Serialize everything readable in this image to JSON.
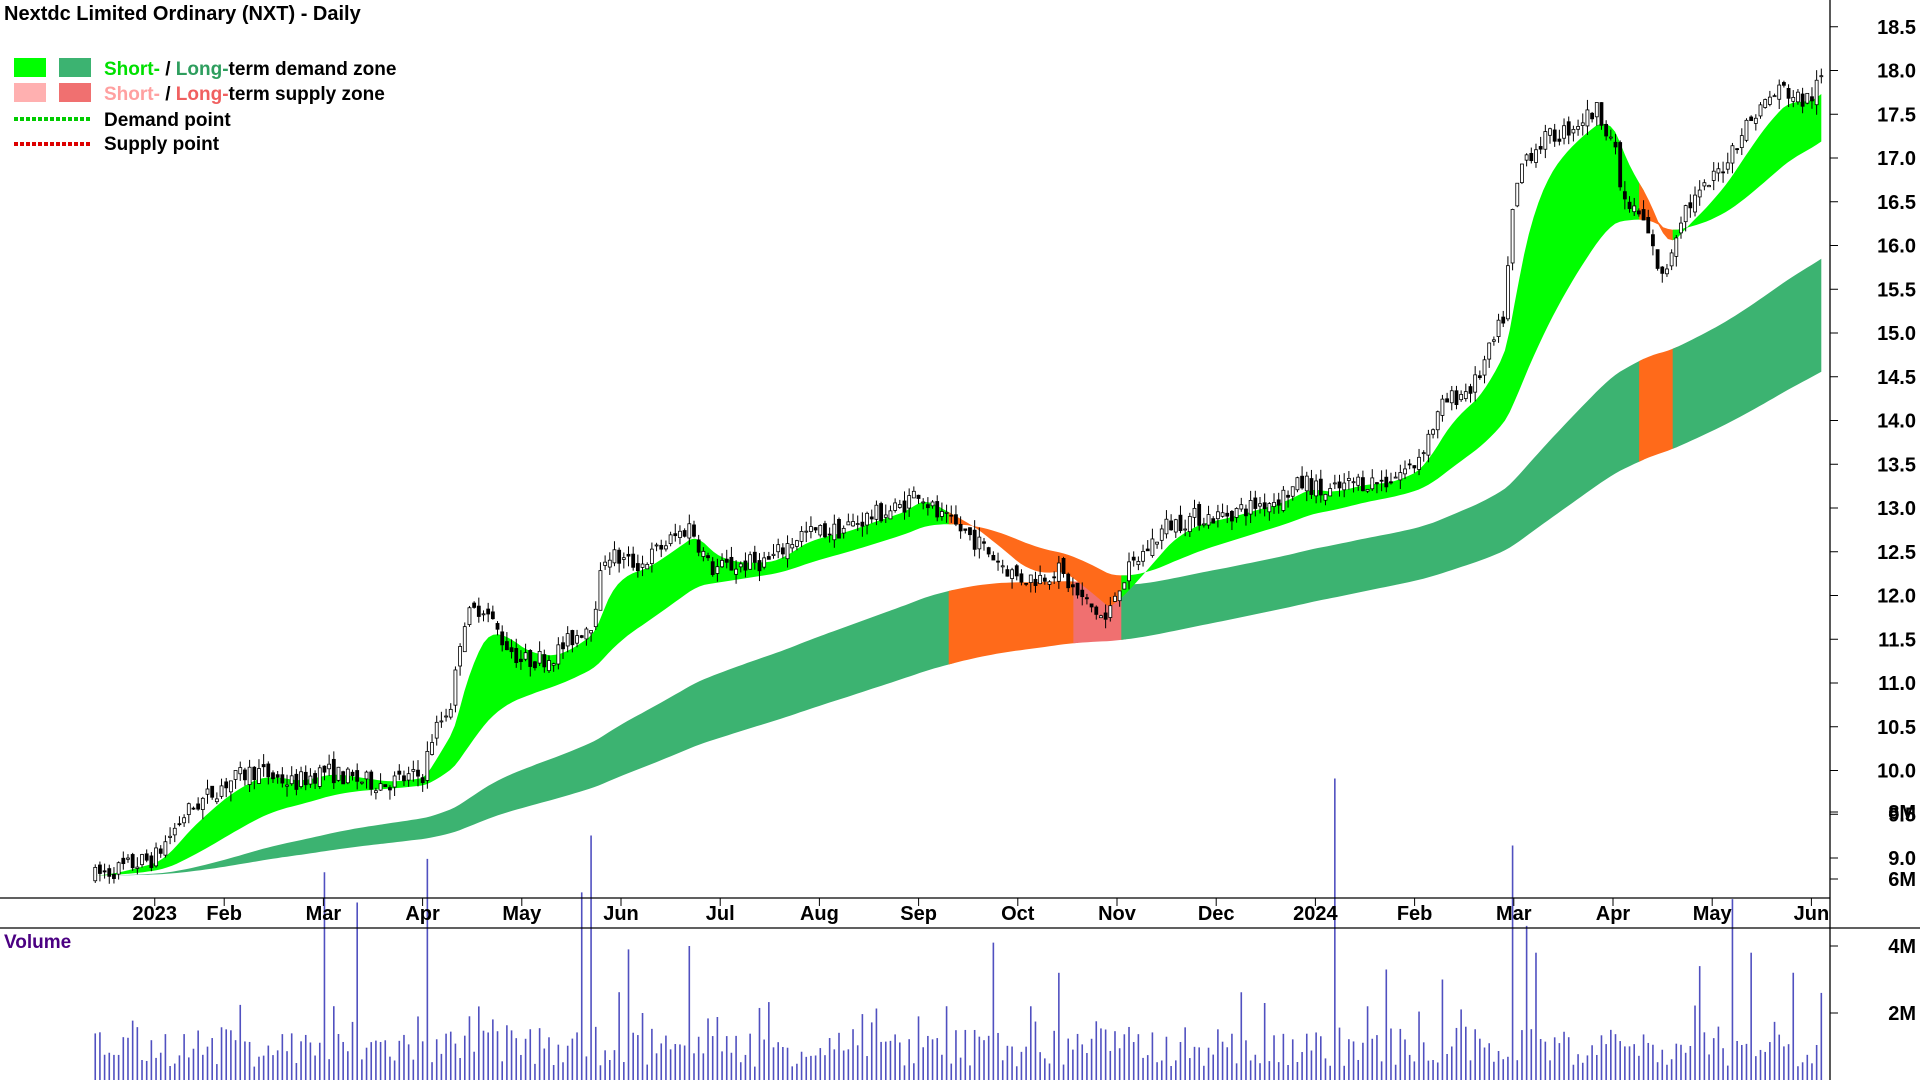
{
  "chart_data": {
    "type": "candlestick",
    "title": "Nextdc Limited Ordinary (NXT) - Daily",
    "legend": {
      "placement": "top-left",
      "demand_zone": {
        "short": "Short-",
        "sep": " / ",
        "long": "Long-",
        "rest": "term demand zone"
      },
      "supply_zone": {
        "short": "Short-",
        "sep": " / ",
        "long": "Long-",
        "rest": "term supply zone"
      },
      "demand_point": "Demand point",
      "supply_point": "Supply point"
    },
    "colors": {
      "short_demand": "#00ff00",
      "long_demand": "#3cb371",
      "short_supply": "#ffb0b0",
      "long_supply": "#f07070",
      "zone_overlap": "#ff6a1a",
      "volume_bar": "#5050c0",
      "volume_label": "#4b0082",
      "demand_point": "#00cc00",
      "supply_point": "#dd0000"
    },
    "price_axis": {
      "min": 8.5,
      "max": 18.8,
      "ticks": [
        "9.0",
        "9.5",
        "10.0",
        "10.5",
        "11.0",
        "11.5",
        "12.0",
        "12.5",
        "13.0",
        "13.5",
        "14.0",
        "14.5",
        "15.0",
        "15.5",
        "16.0",
        "16.5",
        "17.0",
        "17.5",
        "18.0",
        "18.5"
      ]
    },
    "months": [
      {
        "label": "2023",
        "t": 0.3
      },
      {
        "label": "Feb",
        "t": 1.0
      },
      {
        "label": "Mar",
        "t": 2.0
      },
      {
        "label": "Apr",
        "t": 3.0
      },
      {
        "label": "May",
        "t": 4.0
      },
      {
        "label": "Jun",
        "t": 5.0
      },
      {
        "label": "Jul",
        "t": 6.0
      },
      {
        "label": "Aug",
        "t": 7.0
      },
      {
        "label": "Sep",
        "t": 8.0
      },
      {
        "label": "Oct",
        "t": 9.0
      },
      {
        "label": "Nov",
        "t": 10.0
      },
      {
        "label": "Dec",
        "t": 11.0
      },
      {
        "label": "2024",
        "t": 12.0
      },
      {
        "label": "Feb",
        "t": 13.0
      },
      {
        "label": "Mar",
        "t": 14.0
      },
      {
        "label": "Apr",
        "t": 15.0
      },
      {
        "label": "May",
        "t": 16.0
      },
      {
        "label": "Jun",
        "t": 17.0
      }
    ],
    "price_path": [
      [
        -0.3,
        8.8
      ],
      [
        0.3,
        9.0
      ],
      [
        0.6,
        9.5
      ],
      [
        1.0,
        9.85
      ],
      [
        1.3,
        10.0
      ],
      [
        1.7,
        9.85
      ],
      [
        2.0,
        10.0
      ],
      [
        2.3,
        9.9
      ],
      [
        2.6,
        9.85
      ],
      [
        3.0,
        9.95
      ],
      [
        3.1,
        10.4
      ],
      [
        3.3,
        10.8
      ],
      [
        3.4,
        11.7
      ],
      [
        3.6,
        11.9
      ],
      [
        3.8,
        11.5
      ],
      [
        4.0,
        11.25
      ],
      [
        4.3,
        11.3
      ],
      [
        4.5,
        11.5
      ],
      [
        4.7,
        11.7
      ],
      [
        4.85,
        12.5
      ],
      [
        5.0,
        12.4
      ],
      [
        5.2,
        12.35
      ],
      [
        5.4,
        12.55
      ],
      [
        5.7,
        12.8
      ],
      [
        5.9,
        12.3
      ],
      [
        6.2,
        12.35
      ],
      [
        6.5,
        12.4
      ],
      [
        6.8,
        12.7
      ],
      [
        7.2,
        12.75
      ],
      [
        7.5,
        12.9
      ],
      [
        7.8,
        13.0
      ],
      [
        8.0,
        13.2
      ],
      [
        8.2,
        12.9
      ],
      [
        8.5,
        12.7
      ],
      [
        8.8,
        12.4
      ],
      [
        9.0,
        12.2
      ],
      [
        9.2,
        12.2
      ],
      [
        9.4,
        12.3
      ],
      [
        9.6,
        12.0
      ],
      [
        9.9,
        11.7
      ],
      [
        10.0,
        12.1
      ],
      [
        10.2,
        12.4
      ],
      [
        10.5,
        12.8
      ],
      [
        10.8,
        12.9
      ],
      [
        11.0,
        12.9
      ],
      [
        11.3,
        13.0
      ],
      [
        11.6,
        13.1
      ],
      [
        11.9,
        13.3
      ],
      [
        12.1,
        13.15
      ],
      [
        12.4,
        13.3
      ],
      [
        12.7,
        13.3
      ],
      [
        13.0,
        13.5
      ],
      [
        13.3,
        14.2
      ],
      [
        13.6,
        14.4
      ],
      [
        13.8,
        14.9
      ],
      [
        13.9,
        15.2
      ],
      [
        14.0,
        16.5
      ],
      [
        14.1,
        17.0
      ],
      [
        14.3,
        17.2
      ],
      [
        14.5,
        17.3
      ],
      [
        14.7,
        17.45
      ],
      [
        14.85,
        17.55
      ],
      [
        15.0,
        17.2
      ],
      [
        15.1,
        16.5
      ],
      [
        15.3,
        16.3
      ],
      [
        15.5,
        15.6
      ],
      [
        15.7,
        16.4
      ],
      [
        15.9,
        16.6
      ],
      [
        16.1,
        16.9
      ],
      [
        16.3,
        17.3
      ],
      [
        16.5,
        17.6
      ],
      [
        16.7,
        17.8
      ],
      [
        16.9,
        17.65
      ],
      [
        17.0,
        17.7
      ],
      [
        17.1,
        17.9
      ]
    ],
    "volume_axis": {
      "max": 9.0,
      "ticks": [
        "2M",
        "4M",
        "6M",
        "8M"
      ]
    },
    "volume_label": "Volume",
    "volume_spikes": [
      [
        2.0,
        6.2
      ],
      [
        2.35,
        5.3
      ],
      [
        3.05,
        6.6
      ],
      [
        4.6,
        5.6
      ],
      [
        4.7,
        7.3
      ],
      [
        5.1,
        3.9
      ],
      [
        5.7,
        4.0
      ],
      [
        8.75,
        4.1
      ],
      [
        9.4,
        3.2
      ],
      [
        12.2,
        9.0
      ],
      [
        12.7,
        3.3
      ],
      [
        13.3,
        3.0
      ],
      [
        14.0,
        7.0
      ],
      [
        14.12,
        4.6
      ],
      [
        14.25,
        3.8
      ],
      [
        15.9,
        3.4
      ],
      [
        16.2,
        5.4
      ],
      [
        16.4,
        3.8
      ],
      [
        16.8,
        3.2
      ],
      [
        17.1,
        2.6
      ]
    ]
  }
}
